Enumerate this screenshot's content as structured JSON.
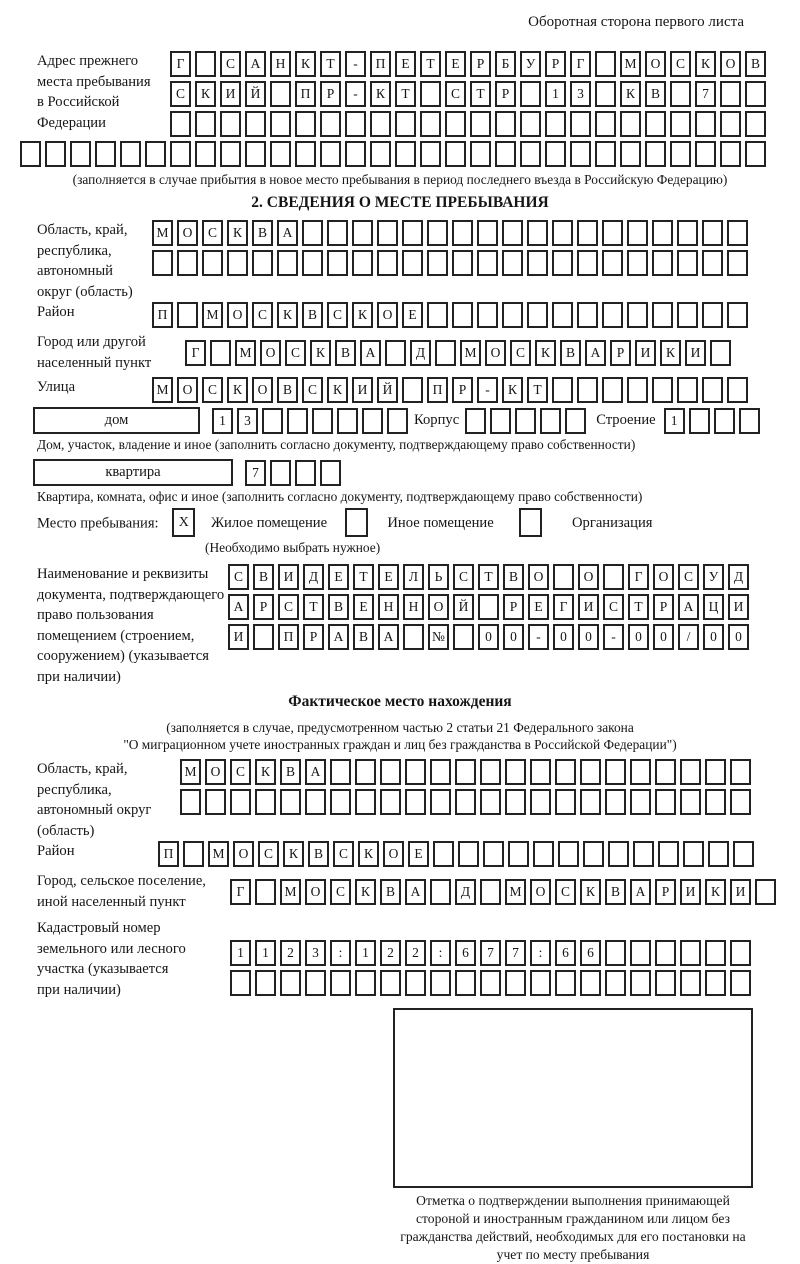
{
  "page_header": "Оборотная сторона первого листа",
  "prev_address": {
    "label": "Адрес прежнего\nместа пребывания\nв Российской\nФедерации",
    "rows": [
      {
        "text": "Г САНКТ-ПЕТЕРБУРГ МОСКОВ",
        "len": 24
      },
      {
        "text": "СКИЙ ПР-КТ СТР 13 КВ 7",
        "len": 24
      },
      {
        "text": "",
        "len": 24
      }
    ],
    "overflow_row": {
      "text": "",
      "len": 30
    },
    "note": "(заполняется в случае прибытия в новое место пребывания в период последнего въезда в Российскую Федерацию)"
  },
  "section2": {
    "title": "2. СВЕДЕНИЯ О МЕСТЕ ПРЕБЫВАНИЯ",
    "region": {
      "label": "Область, край,\nреспублика,\nавтономный\nокруг (область)",
      "rows": [
        {
          "text": "МОСКВА",
          "len": 24
        },
        {
          "text": "",
          "len": 24
        }
      ]
    },
    "district": {
      "label": "Район",
      "row": {
        "text": "П МОСКВСКОЕ",
        "len": 24
      }
    },
    "city": {
      "label": "Город или другой\nнаселенный пункт",
      "row": {
        "text": "Г МОСКВА Д МОСКВАРИКИ",
        "len": 22
      }
    },
    "street": {
      "label": "Улица",
      "row": {
        "text": "МОСКОВСКИЙ ПР-КТ",
        "len": 24
      }
    },
    "house": {
      "box_label": "дом",
      "cells": {
        "text": "13",
        "len": 8
      },
      "korpus_label": "Корпус",
      "korpus_cells": {
        "text": "",
        "len": 5
      },
      "stroenie_label": "Строение",
      "stroenie_cells": {
        "text": "1",
        "len": 4
      },
      "note": "Дом, участок, владение и иное (заполнить согласно документу, подтверждающему право собственности)"
    },
    "apartment": {
      "box_label": "квартира",
      "cells": {
        "text": "7",
        "len": 4
      },
      "note": "Квартира, комната, офис и иное (заполнить согласно документу, подтверждающему право собственности)"
    },
    "stay_type": {
      "label": "Место пребывания:",
      "options": [
        {
          "label": "Жилое помещение",
          "mark": "X"
        },
        {
          "label": "Иное помещение",
          "mark": ""
        },
        {
          "label": "Организация",
          "mark": ""
        }
      ],
      "note": "(Необходимо выбрать нужное)"
    },
    "document": {
      "label": "Наименование и реквизиты\nдокумента, подтверждающего\nправо пользования\nпомещением (строением,\nсооружением) (указывается\nпри наличии)",
      "rows": [
        {
          "text": "СВИДЕТЕЛЬСТВО О ГОСУД",
          "len": 21
        },
        {
          "text": "АРСТВЕННОЙ РЕГИСТРАЦИ",
          "len": 21
        },
        {
          "text": "И ПРАВА № 00-00-00/000",
          "len": 21
        }
      ]
    }
  },
  "actual_location": {
    "title": "Фактическое место нахождения",
    "note_line1": "(заполняется в случае, предусмотренном частью 2 статьи 21 Федерального закона",
    "note_line2": "\"О миграционном учете иностранных граждан и лиц без гражданства в Российской Федерации\")",
    "region": {
      "label": "Область, край,\nреспублика,\nавтономный округ\n(область)",
      "rows": [
        {
          "text": "МОСКВА",
          "len": 23
        },
        {
          "text": "",
          "len": 23
        }
      ]
    },
    "district": {
      "label": "Район",
      "row": {
        "text": "П МОСКВСКОЕ",
        "len": 24
      }
    },
    "city": {
      "label": "Город, сельское поселение,\nиной населенный пункт",
      "row": {
        "text": "Г МОСКВА Д МОСКВАРИКИ",
        "len": 22
      }
    },
    "cadastral": {
      "label": "Кадастровый номер\nземельного или лесного\nучастка (указывается\nпри наличии)",
      "rows": [
        {
          "text": "1123:122:677:66",
          "len": 21
        },
        {
          "text": "",
          "len": 21
        }
      ]
    }
  },
  "stamp": {
    "caption": "Отметка о подтверждении выполнения принимающей стороной и иностранным гражданином или лицом без гражданства действий, необходимых для его постановки на учет по месту пребывания"
  }
}
